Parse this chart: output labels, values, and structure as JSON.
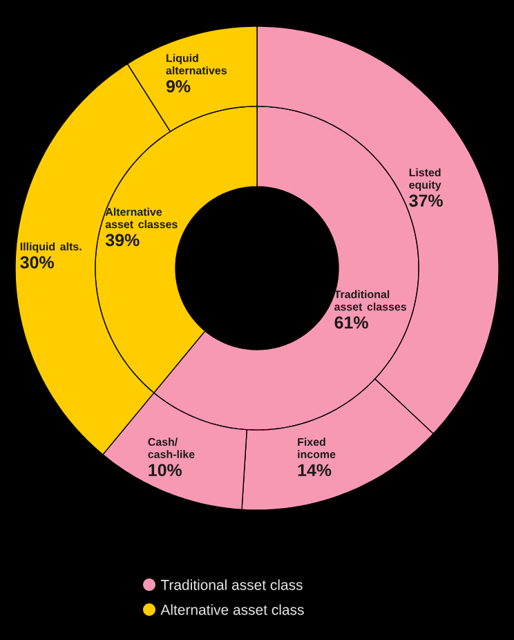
{
  "chart_data": [
    {
      "type": "donut",
      "categories": [
        "Traditional asset classes",
        "Alternative asset classes"
      ],
      "values": [
        61,
        39
      ],
      "value_labels": [
        "61%",
        "39%"
      ],
      "colors": [
        "#f899b3",
        "#ffcd00"
      ]
    },
    {
      "type": "donut",
      "categories": [
        "Listed equity",
        "Fixed income",
        "Cash/ cash-like",
        "Illiquid alts.",
        "Liquid alternatives"
      ],
      "values": [
        37,
        14,
        10,
        30,
        9
      ],
      "value_labels": [
        "37%",
        "14%",
        "10%",
        "30%",
        "9%"
      ],
      "colors": [
        "#f899b3",
        "#f899b3",
        "#f899b3",
        "#ffcd00",
        "#ffcd00"
      ]
    },
    {
      "type": "other",
      "categories": [
        "Traditional asset class",
        "Alternative asset class"
      ],
      "colors": [
        "#f899b3",
        "#ffcd00"
      ]
    }
  ]
}
